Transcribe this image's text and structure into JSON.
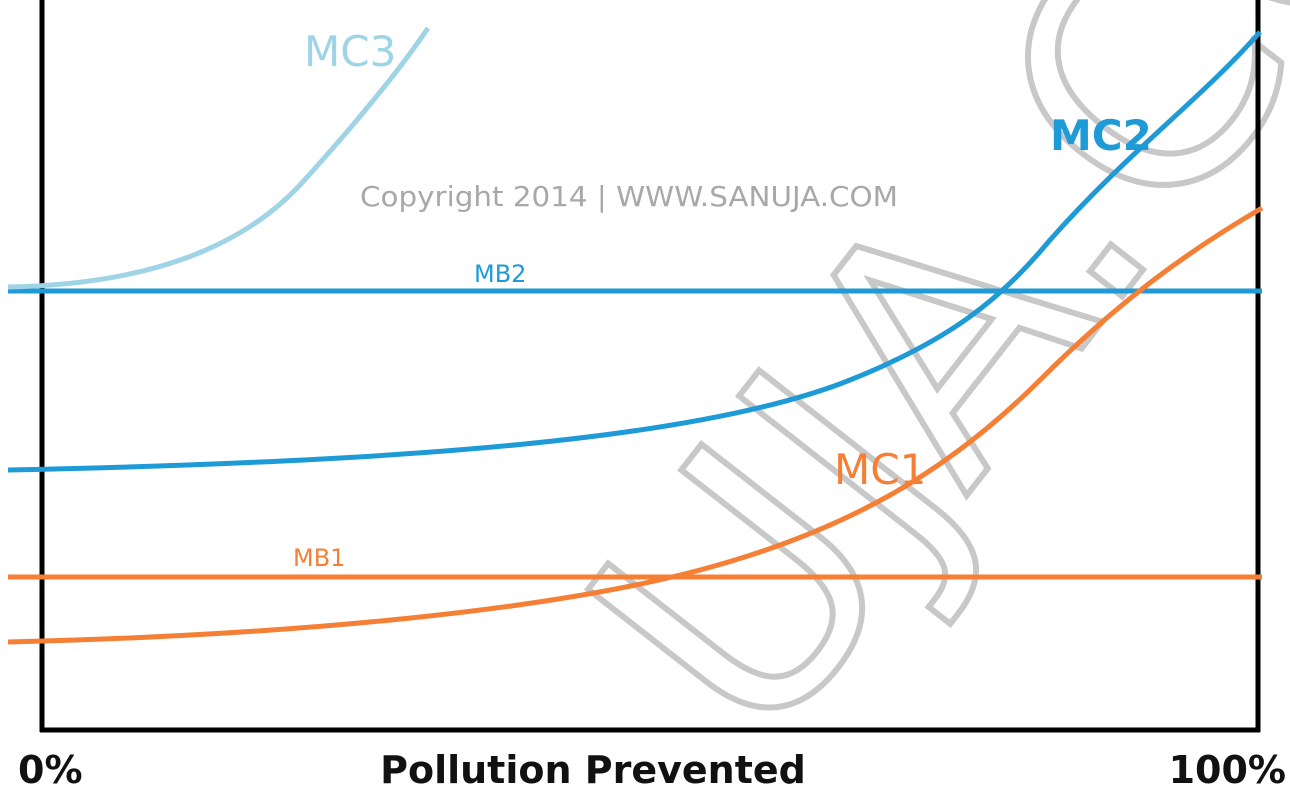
{
  "curves": {
    "mc3": {
      "label": "MC3"
    },
    "mc2": {
      "label": "MC2"
    },
    "mc1": {
      "label": "MC1"
    },
    "mb2": {
      "label": "MB2"
    },
    "mb1": {
      "label": "MB1"
    }
  },
  "x_axis": {
    "title": "Pollution Prevented",
    "start_label": "0%",
    "end_label": "100%"
  },
  "copyright": "Copyright 2014 | WWW.SANUJA.COM",
  "watermark": "UJA.CO"
}
